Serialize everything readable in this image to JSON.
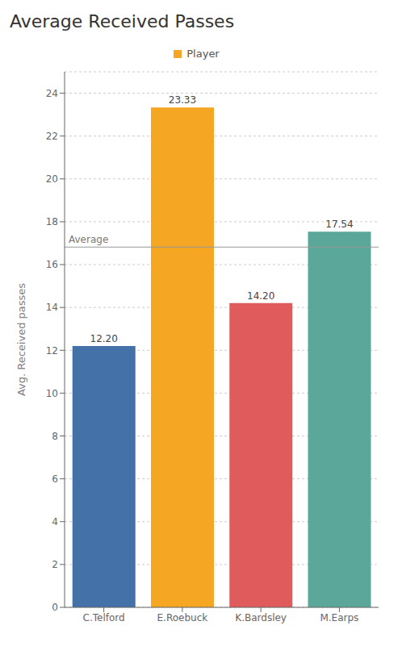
{
  "chart_data": {
    "type": "bar",
    "title": "Average Received Passes",
    "y_label": "Avg. Received passes",
    "categories": [
      "C.Telford",
      "E.Roebuck",
      "K.Bardsley",
      "M.Earps"
    ],
    "series": [
      {
        "name": "Player",
        "values": [
          12.2,
          23.33,
          14.2,
          17.54
        ],
        "value_labels": [
          "12.20",
          "23.33",
          "14.20",
          "17.54"
        ],
        "colors": [
          "#4472a8",
          "#f5a623",
          "#e05c5c",
          "#5ba89a"
        ]
      }
    ],
    "average": {
      "value": 16.8175,
      "label": "Average"
    },
    "ylim": [
      0,
      25
    ],
    "yticks": [
      0,
      2,
      4,
      6,
      8,
      10,
      12,
      14,
      16,
      18,
      20,
      22,
      24
    ],
    "grid": true,
    "data_labels": true,
    "legend": "top"
  }
}
